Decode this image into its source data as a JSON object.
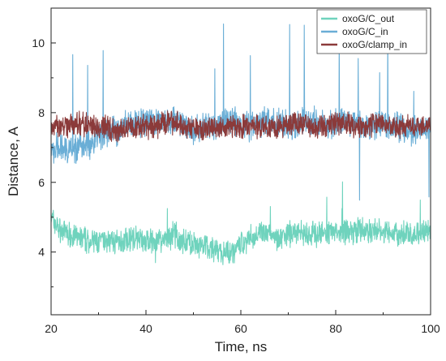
{
  "chart_data": {
    "type": "line",
    "title": "",
    "xlabel": "Time, ns",
    "ylabel": "Distance, A",
    "xlim": [
      20,
      100
    ],
    "ylim": [
      2.2,
      11.0
    ],
    "x_ticks": [
      20,
      40,
      60,
      80,
      100
    ],
    "y_ticks": [
      4,
      6,
      8,
      10
    ],
    "grid": false,
    "legend_position": "top-right",
    "series": [
      {
        "name": "oxoG/C_out",
        "color": "#6fd3bd",
        "x": [
          20,
          22,
          24,
          26,
          28,
          30,
          32,
          34,
          36,
          38,
          40,
          42,
          44,
          46,
          48,
          50,
          52,
          54,
          56,
          58,
          60,
          62,
          64,
          66,
          68,
          70,
          72,
          74,
          76,
          78,
          80,
          82,
          84,
          86,
          88,
          90,
          92,
          94,
          96,
          98,
          100
        ],
        "y": [
          5.0,
          4.6,
          4.5,
          4.4,
          4.3,
          4.3,
          4.3,
          4.3,
          4.4,
          4.4,
          4.3,
          4.3,
          4.4,
          4.5,
          4.3,
          4.2,
          4.1,
          4.1,
          4.0,
          4.0,
          4.2,
          4.4,
          4.5,
          4.5,
          4.4,
          4.5,
          4.6,
          4.5,
          4.5,
          4.6,
          4.6,
          4.6,
          4.6,
          4.6,
          4.6,
          4.6,
          4.5,
          4.5,
          4.5,
          4.6,
          4.6
        ]
      },
      {
        "name": "oxoG/C_in",
        "color": "#6aaed6",
        "x": [
          20,
          22,
          24,
          26,
          28,
          30,
          32,
          34,
          36,
          38,
          40,
          42,
          44,
          46,
          48,
          50,
          52,
          54,
          56,
          58,
          60,
          62,
          64,
          66,
          68,
          70,
          72,
          74,
          76,
          78,
          80,
          82,
          84,
          86,
          88,
          90,
          92,
          94,
          96,
          98,
          100
        ],
        "y": [
          6.9,
          7.0,
          6.9,
          7.0,
          7.1,
          7.3,
          7.5,
          7.5,
          7.7,
          7.7,
          7.7,
          7.7,
          7.8,
          7.8,
          7.6,
          7.5,
          7.6,
          7.6,
          7.7,
          7.8,
          7.7,
          7.6,
          7.7,
          7.8,
          7.7,
          7.6,
          7.7,
          7.8,
          7.7,
          7.6,
          7.7,
          7.7,
          7.7,
          7.6,
          7.6,
          7.7,
          7.6,
          7.6,
          7.5,
          7.5,
          7.5
        ]
      },
      {
        "name": "oxoG/clamp_in",
        "color": "#8b3a3a",
        "x": [
          20,
          22,
          24,
          26,
          28,
          30,
          32,
          34,
          36,
          38,
          40,
          42,
          44,
          46,
          48,
          50,
          52,
          54,
          56,
          58,
          60,
          62,
          64,
          66,
          68,
          70,
          72,
          74,
          76,
          78,
          80,
          82,
          84,
          86,
          88,
          90,
          92,
          94,
          96,
          98,
          100
        ],
        "y": [
          7.6,
          7.6,
          7.6,
          7.7,
          7.6,
          7.6,
          7.6,
          7.4,
          7.6,
          7.6,
          7.6,
          7.6,
          7.7,
          7.7,
          7.6,
          7.6,
          7.5,
          7.6,
          7.6,
          7.6,
          7.6,
          7.6,
          7.6,
          7.6,
          7.6,
          7.7,
          7.7,
          7.7,
          7.6,
          7.6,
          7.7,
          7.7,
          7.6,
          7.6,
          7.7,
          7.7,
          7.6,
          7.6,
          7.6,
          7.6,
          7.6
        ]
      }
    ]
  }
}
